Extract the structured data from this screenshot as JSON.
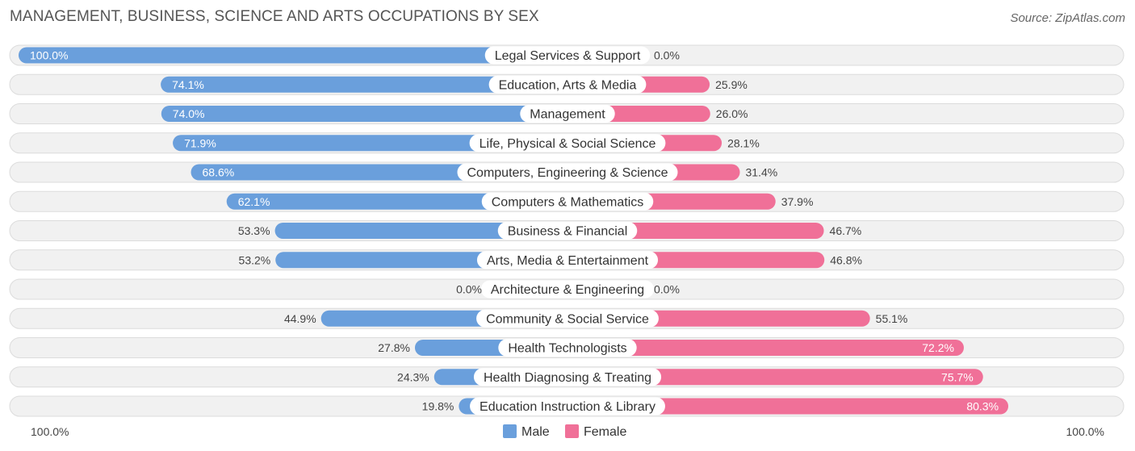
{
  "title": "MANAGEMENT, BUSINESS, SCIENCE AND ARTS OCCUPATIONS BY SEX",
  "source": "Source: ZipAtlas.com",
  "colors": {
    "male": "#6a9fdc",
    "male_light": "#a9c8ec",
    "female": "#f07098",
    "female_light": "#f6a8c0"
  },
  "chart_data": {
    "type": "bar",
    "orientation": "horizontal-diverging",
    "categories": [
      "Legal Services & Support",
      "Education, Arts & Media",
      "Management",
      "Life, Physical & Social Science",
      "Computers, Engineering & Science",
      "Computers & Mathematics",
      "Business & Financial",
      "Arts, Media & Entertainment",
      "Architecture & Engineering",
      "Community & Social Service",
      "Health Technologists",
      "Health Diagnosing & Treating",
      "Education Instruction & Library"
    ],
    "series": [
      {
        "name": "Male",
        "values": [
          100.0,
          74.1,
          74.0,
          71.9,
          68.6,
          62.1,
          53.3,
          53.2,
          0.0,
          44.9,
          27.8,
          24.3,
          19.8
        ],
        "labels": [
          "100.0%",
          "74.1%",
          "74.0%",
          "71.9%",
          "68.6%",
          "62.1%",
          "53.3%",
          "53.2%",
          "0.0%",
          "44.9%",
          "27.8%",
          "24.3%",
          "19.8%"
        ]
      },
      {
        "name": "Female",
        "values": [
          0.0,
          25.9,
          26.0,
          28.1,
          31.4,
          37.9,
          46.7,
          46.8,
          0.0,
          55.1,
          72.2,
          75.7,
          80.3
        ],
        "labels": [
          "0.0%",
          "25.9%",
          "26.0%",
          "28.1%",
          "31.4%",
          "37.9%",
          "46.7%",
          "46.8%",
          "0.0%",
          "55.1%",
          "72.2%",
          "75.7%",
          "80.3%"
        ]
      }
    ],
    "xlim": [
      -100,
      100
    ],
    "axis_labels": {
      "left": "100.0%",
      "right": "100.0%"
    },
    "legend": {
      "position": "bottom-center",
      "items": [
        "Male",
        "Female"
      ]
    },
    "grid": false
  }
}
